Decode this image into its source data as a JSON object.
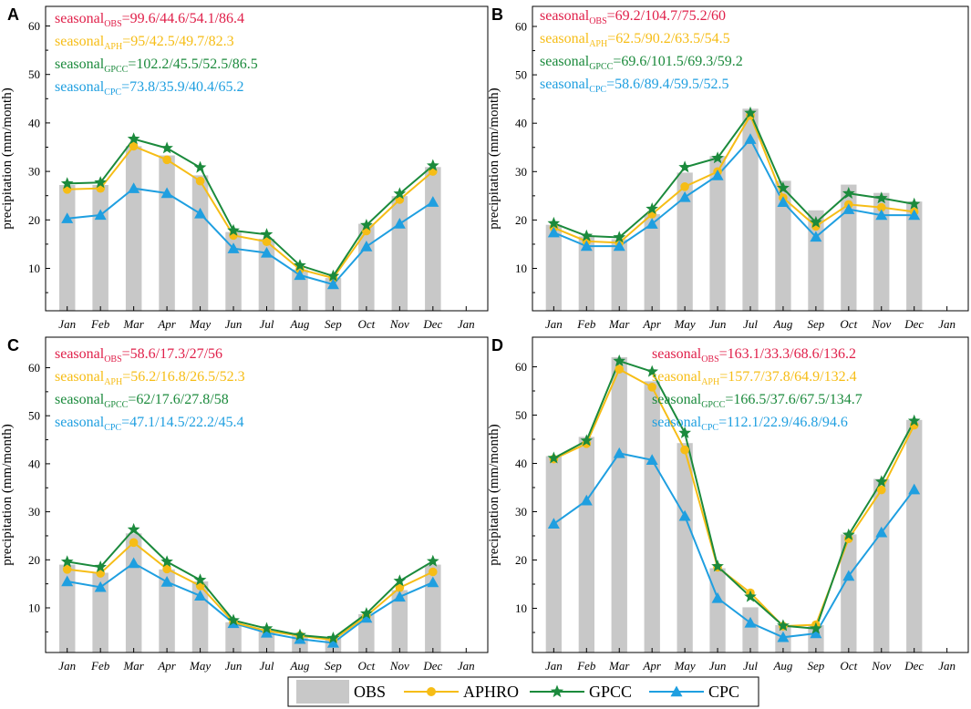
{
  "chart_data": {
    "type": "bar+line",
    "months": [
      "Jan",
      "Feb",
      "Mar",
      "Apr",
      "May",
      "Jun",
      "Jul",
      "Aug",
      "Sep",
      "Oct",
      "Nov",
      "Dec"
    ],
    "extra_xtick": "Jan",
    "ylabel": "precipitation (mm/month)",
    "yticks": [
      10,
      20,
      30,
      40,
      50,
      60
    ],
    "ylim": [
      0,
      63
    ],
    "colors": {
      "OBS": "#c8c8c8",
      "APHRO": "#f6bd16",
      "GPCC": "#1b8a3c",
      "CPC": "#1f9fe0",
      "ann_obs": "#e0204a"
    },
    "legend": [
      "OBS",
      "APHRO",
      "GPCC",
      "CPC"
    ],
    "panels": [
      {
        "letter": "A",
        "series": {
          "OBS": [
            27.2,
            27.2,
            35.2,
            33.3,
            29.2,
            17.5,
            16.1,
            9.8,
            8.0,
            19.2,
            24.9,
            30.9
          ],
          "APHRO": [
            26.3,
            26.5,
            35.2,
            32.4,
            28.0,
            16.8,
            15.5,
            9.8,
            8.0,
            17.7,
            24.2,
            30.0
          ],
          "GPCC": [
            27.5,
            27.7,
            36.7,
            34.8,
            30.8,
            17.8,
            17.0,
            10.6,
            8.4,
            18.9,
            25.4,
            31.2
          ],
          "CPC": [
            20.3,
            21.0,
            26.5,
            25.5,
            21.3,
            14.1,
            13.2,
            8.6,
            6.7,
            14.5,
            19.2,
            23.7
          ]
        },
        "annotations": [
          {
            "prefix": "seasonal",
            "sub": "OBS",
            "values": "=99.6/44.6/54.1/86.4",
            "series": "OBS"
          },
          {
            "prefix": "seasonal",
            "sub": "APH",
            "values": "=95/42.5/49.7/82.3",
            "series": "APHRO"
          },
          {
            "prefix": "seasonal",
            "sub": "GPCC",
            "values": "=102.2/45.5/52.5/86.5",
            "series": "GPCC"
          },
          {
            "prefix": "seasonal",
            "sub": "CPC",
            "values": "=73.8/35.9/40.4/65.2",
            "series": "CPC"
          }
        ]
      },
      {
        "letter": "B",
        "series": {
          "OBS": [
            19.0,
            16.6,
            16.0,
            21.2,
            29.8,
            33.2,
            43.0,
            28.1,
            22.0,
            27.3,
            25.6,
            23.8
          ],
          "APHRO": [
            18.4,
            15.6,
            15.3,
            21.2,
            26.9,
            30.0,
            41.6,
            24.6,
            18.7,
            23.2,
            22.6,
            21.7
          ],
          "GPCC": [
            19.3,
            16.7,
            16.4,
            22.3,
            30.9,
            32.8,
            42.1,
            26.6,
            19.5,
            25.5,
            24.5,
            23.3
          ],
          "CPC": [
            17.4,
            14.6,
            14.6,
            19.2,
            24.7,
            29.2,
            36.7,
            23.7,
            16.5,
            22.2,
            21.0,
            21.0
          ]
        },
        "annotations": [
          {
            "prefix": "seasonal",
            "sub": "OBS",
            "values": "=69.2/104.7/75.2/60",
            "series": "OBS"
          },
          {
            "prefix": "seasonal",
            "sub": "APH",
            "values": "=62.5/90.2/63.5/54.5",
            "series": "APHRO"
          },
          {
            "prefix": "seasonal",
            "sub": "GPCC",
            "values": "=69.6/101.5/69.3/59.2",
            "series": "GPCC"
          },
          {
            "prefix": "seasonal",
            "sub": "CPC",
            "values": "=58.6/89.4/59.5/52.5",
            "series": "CPC"
          }
        ]
      },
      {
        "letter": "C",
        "series": {
          "OBS": [
            19.0,
            17.3,
            25.5,
            18.0,
            15.5,
            7.0,
            5.2,
            4.3,
            3.7,
            8.7,
            13.7,
            19.0
          ],
          "APHRO": [
            18.0,
            17.2,
            23.6,
            18.1,
            14.6,
            7.0,
            5.2,
            4.2,
            3.3,
            8.3,
            14.2,
            17.5
          ],
          "GPCC": [
            19.6,
            18.5,
            26.3,
            19.6,
            15.8,
            7.4,
            5.7,
            4.3,
            3.7,
            8.8,
            15.6,
            19.7
          ],
          "CPC": [
            15.5,
            14.3,
            19.3,
            15.4,
            12.5,
            6.8,
            4.8,
            3.5,
            2.7,
            7.9,
            12.3,
            15.3
          ]
        },
        "annotations": [
          {
            "prefix": "seasonal",
            "sub": "OBS",
            "values": "=58.6/17.3/27/56",
            "series": "OBS"
          },
          {
            "prefix": "seasonal",
            "sub": "APH",
            "values": "=56.2/16.8/26.5/52.3",
            "series": "APHRO"
          },
          {
            "prefix": "seasonal",
            "sub": "GPCC",
            "values": "=62/17.6/27.8/58",
            "series": "GPCC"
          },
          {
            "prefix": "seasonal",
            "sub": "CPC",
            "values": "=47.1/14.5/22.2/45.4",
            "series": "CPC"
          }
        ]
      },
      {
        "letter": "D",
        "series": {
          "OBS": [
            41.5,
            45.5,
            62.0,
            57.0,
            44.2,
            18.3,
            10.2,
            6.5,
            6.5,
            25.3,
            36.8,
            49.0
          ],
          "APHRO": [
            40.9,
            44.1,
            59.5,
            55.8,
            42.8,
            18.5,
            13.2,
            6.3,
            6.6,
            24.4,
            34.5,
            47.9
          ],
          "GPCC": [
            41.1,
            44.7,
            61.2,
            59.0,
            46.3,
            18.7,
            12.4,
            6.4,
            5.8,
            25.2,
            36.2,
            48.8
          ],
          "CPC": [
            27.5,
            32.3,
            42.1,
            40.7,
            29.1,
            12.1,
            7.0,
            4.0,
            4.8,
            16.7,
            25.7,
            34.6
          ]
        },
        "annotations": [
          {
            "prefix": "seasonal",
            "sub": "OBS",
            "values": "=163.1/33.3/68.6/136.2",
            "series": "OBS"
          },
          {
            "prefix": "seasonal",
            "sub": "APH",
            "values": "=157.7/37.8/64.9/132.4",
            "series": "APHRO"
          },
          {
            "prefix": "seasonal",
            "sub": "GPCC",
            "values": "=166.5/37.6/67.5/134.7",
            "series": "GPCC"
          },
          {
            "prefix": "seasonal",
            "sub": "CPC",
            "values": "=112.1/22.9/46.8/94.6",
            "series": "CPC"
          }
        ]
      }
    ]
  }
}
